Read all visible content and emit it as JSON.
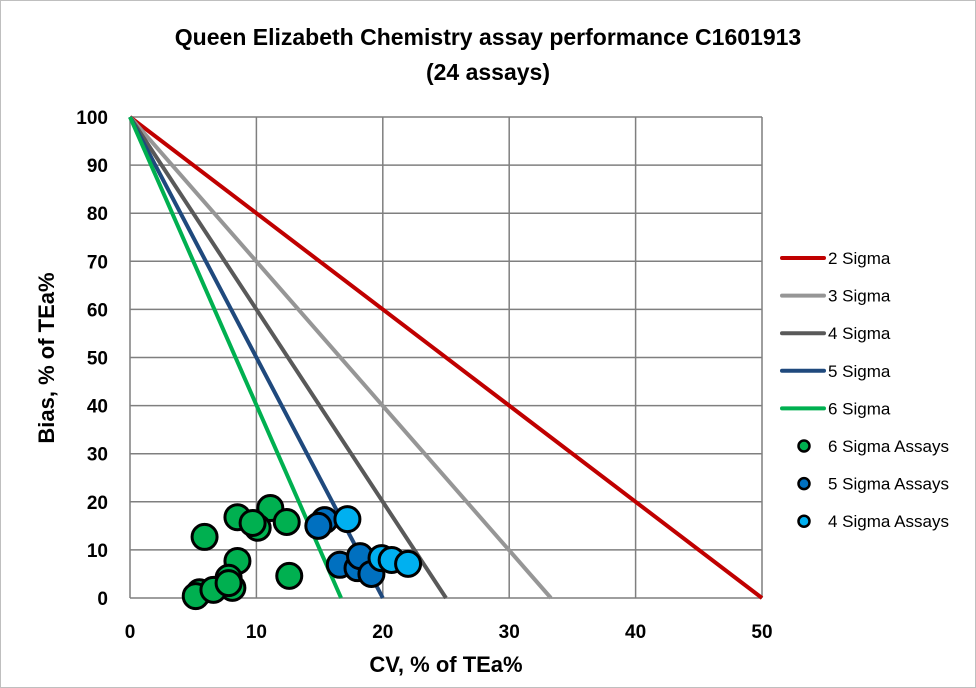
{
  "chart_data": {
    "type": "scatter",
    "title": "Queen Elizabeth Chemistry assay performance C1601913",
    "subtitle": "(24 assays)",
    "xlabel": "CV, % of TEa%",
    "ylabel": "Bias, % of TEa%",
    "xlim": [
      0,
      50
    ],
    "ylim": [
      0,
      100
    ],
    "xticks": [
      0,
      10,
      20,
      30,
      40,
      50
    ],
    "yticks": [
      0,
      10,
      20,
      30,
      40,
      50,
      60,
      70,
      80,
      90,
      100
    ],
    "grid": true,
    "legend_position": "right",
    "lines": [
      {
        "name": "2 Sigma",
        "color": "#C00000",
        "points": [
          [
            0,
            100
          ],
          [
            50,
            0
          ]
        ]
      },
      {
        "name": "3 Sigma",
        "color": "#969696",
        "points": [
          [
            0,
            100
          ],
          [
            33.3,
            0
          ]
        ]
      },
      {
        "name": "4 Sigma",
        "color": "#595959",
        "points": [
          [
            0,
            100
          ],
          [
            25,
            0
          ]
        ]
      },
      {
        "name": "5 Sigma",
        "color": "#1F497D",
        "points": [
          [
            0,
            100
          ],
          [
            20,
            0
          ]
        ]
      },
      {
        "name": "6 Sigma",
        "color": "#00B050",
        "points": [
          [
            0,
            100
          ],
          [
            16.7,
            0
          ]
        ]
      }
    ],
    "series": [
      {
        "name": "6 Sigma Assays",
        "color": "#00B050",
        "points": [
          [
            5.9,
            12.7
          ],
          [
            8.5,
            16.8
          ],
          [
            11.1,
            18.7
          ],
          [
            10.1,
            14.6
          ],
          [
            9.7,
            15.6
          ],
          [
            12.4,
            15.8
          ],
          [
            8.5,
            7.7
          ],
          [
            12.6,
            4.6
          ],
          [
            7.8,
            4.2
          ],
          [
            8.1,
            2.1
          ],
          [
            5.5,
            1.2
          ],
          [
            5.2,
            0.4
          ],
          [
            6.6,
            1.7
          ],
          [
            7.8,
            3.1
          ]
        ]
      },
      {
        "name": "5 Sigma Assays",
        "color": "#0070C0",
        "points": [
          [
            15.4,
            16.2
          ],
          [
            14.9,
            15.0
          ],
          [
            16.6,
            6.9
          ],
          [
            18.0,
            6.2
          ],
          [
            18.2,
            8.7
          ],
          [
            19.1,
            5.0
          ]
        ]
      },
      {
        "name": "4 Sigma Assays",
        "color": "#00B0F0",
        "points": [
          [
            17.2,
            16.4
          ],
          [
            19.9,
            8.3
          ],
          [
            20.7,
            7.9
          ],
          [
            22.0,
            7.1
          ]
        ]
      }
    ]
  }
}
